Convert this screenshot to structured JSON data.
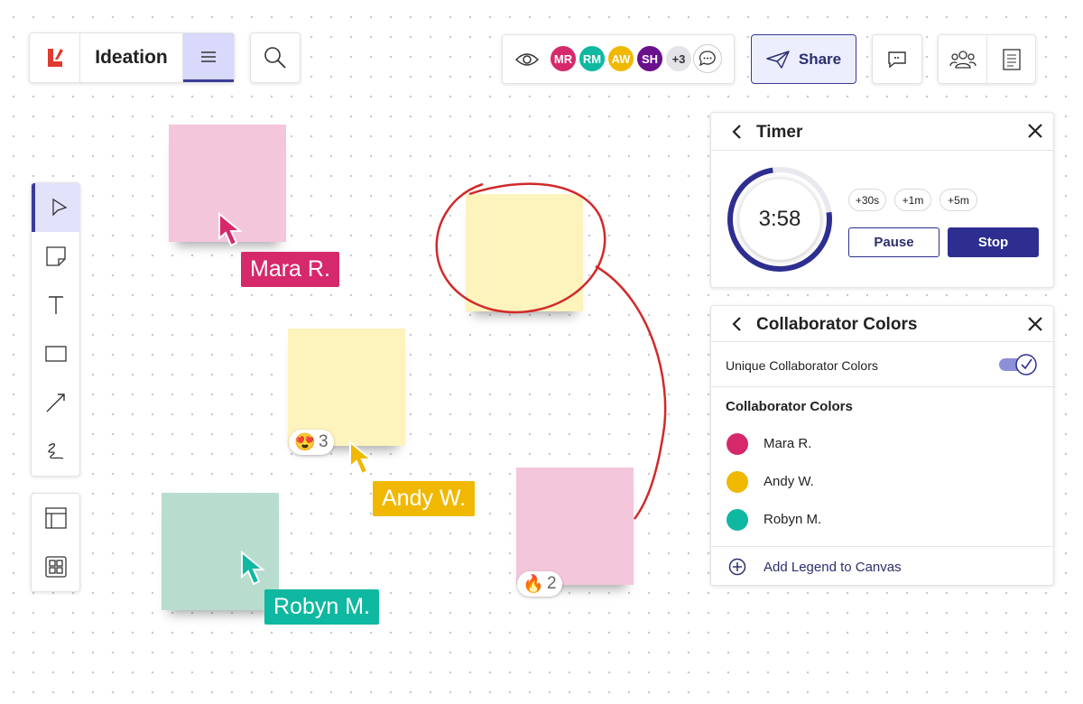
{
  "header": {
    "board_title": "Ideation"
  },
  "collaborators_bar": {
    "avatars": [
      "MR",
      "RM",
      "AW",
      "SH"
    ],
    "overflow": "+3"
  },
  "share_button": "Share",
  "canvas": {
    "reactions": [
      {
        "emoji": "😍",
        "count": 3
      },
      {
        "emoji": "🔥",
        "count": 2
      }
    ],
    "cursors": [
      "Mara R.",
      "Andy W.",
      "Robyn M."
    ]
  },
  "timer_panel": {
    "title": "Timer",
    "time": "3:58",
    "increments": [
      "+30s",
      "+1m",
      "+5m"
    ],
    "pause": "Pause",
    "stop": "Stop"
  },
  "colors_panel": {
    "title": "Collaborator Colors",
    "toggle_label": "Unique Collaborator Colors",
    "section_title": "Collaborator Colors",
    "collaborators": [
      "Mara R.",
      "Andy W.",
      "Robyn M."
    ],
    "add_legend": "Add Legend to Canvas"
  }
}
